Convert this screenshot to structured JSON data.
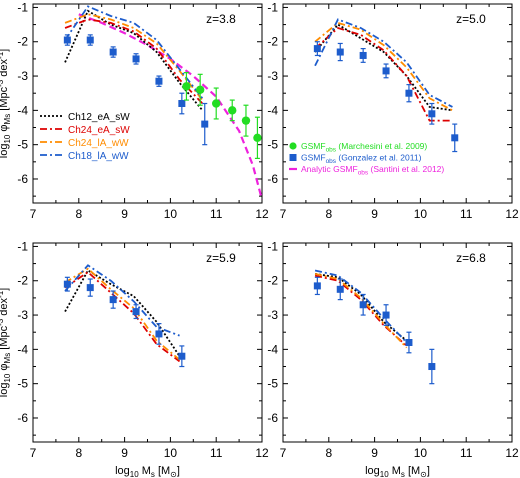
{
  "chart_data": [
    {
      "type": "line",
      "title": "z=3.8",
      "xlabel": "",
      "ylabel": "log10 φMs [Mpc-3 dex-1]",
      "xlim": [
        7,
        12
      ],
      "ylim": [
        -6.7,
        -0.9
      ],
      "xticks": [
        7,
        8,
        9,
        10,
        11,
        12
      ],
      "yticks": [
        -6,
        -5,
        -4,
        -3,
        -2,
        -1
      ],
      "model_series": [
        {
          "name": "Ch12_eA_sW",
          "color": "#000000",
          "dash": "2,2",
          "x": [
            7.7,
            8.2,
            8.7,
            9.2,
            9.7,
            10.2,
            10.7
          ],
          "y": [
            -2.6,
            -1.1,
            -1.5,
            -1.75,
            -2.3,
            -3.2,
            -4.0
          ]
        },
        {
          "name": "Ch24_eA_sW",
          "color": "#dd0000",
          "dash": "7,3,2,3",
          "x": [
            7.7,
            8.2,
            8.7,
            9.2,
            9.7,
            10.2,
            10.7
          ],
          "y": [
            -1.6,
            -1.35,
            -1.45,
            -1.7,
            -2.2,
            -3.1,
            -3.8
          ]
        },
        {
          "name": "Ch24_lA_wW",
          "color": "#ff8c00",
          "dash": "7,3,2,3",
          "x": [
            7.7,
            8.2,
            8.7,
            9.2,
            9.7,
            10.2,
            10.7
          ],
          "y": [
            -1.45,
            -1.2,
            -1.35,
            -1.6,
            -2.05,
            -2.85,
            -3.7
          ]
        },
        {
          "name": "Ch18_lA_wW",
          "color": "#1d5ccc",
          "dash": "7,3,2,3",
          "x": [
            7.7,
            8.2,
            8.7,
            9.2,
            9.7,
            10.2,
            10.7
          ],
          "y": [
            -1.95,
            -0.97,
            -1.25,
            -1.45,
            -1.95,
            -2.8,
            -3.65
          ]
        }
      ],
      "curve": {
        "name": "Analytic GSMFobs (Santini et al. 2012)",
        "color": "#ee22dd",
        "x": [
          8.0,
          8.5,
          9.0,
          9.5,
          10.0,
          10.5,
          11.0,
          11.5,
          11.8,
          12.0
        ],
        "y": [
          -1.2,
          -1.45,
          -1.75,
          -2.1,
          -2.5,
          -3.0,
          -3.6,
          -4.6,
          -5.6,
          -6.6
        ]
      },
      "points": [
        {
          "name": "GSMFobs (Gonzalez et al. 2011)",
          "color": "#1d5ccc",
          "marker": "square",
          "x": [
            7.75,
            8.25,
            8.75,
            9.25,
            9.75,
            10.25,
            10.75
          ],
          "y": [
            -1.95,
            -1.95,
            -2.3,
            -2.5,
            -3.15,
            -3.8,
            -4.4
          ],
          "err": [
            0.15,
            0.15,
            0.15,
            0.15,
            0.15,
            0.3,
            0.6
          ]
        },
        {
          "name": "GSMFobs (Marchesini et al. 2009)",
          "color": "#22dd22",
          "marker": "circle",
          "x": [
            10.35,
            10.65,
            11.0,
            11.35,
            11.65,
            11.9
          ],
          "y": [
            -3.3,
            -3.4,
            -3.8,
            -4.0,
            -4.3,
            -4.8
          ],
          "err": [
            0.4,
            0.45,
            0.45,
            0.3,
            0.45,
            0.6
          ]
        }
      ],
      "legend": {
        "placement": "lower-left",
        "entries": [
          {
            "label": "Ch12_eA_sW",
            "color": "#000000"
          },
          {
            "label": "Ch24_eA_sW",
            "color": "#dd0000"
          },
          {
            "label": "Ch24_lA_wW",
            "color": "#ff8c00"
          },
          {
            "label": "Ch18_lA_wW",
            "color": "#1d5ccc"
          }
        ]
      }
    },
    {
      "type": "line",
      "title": "z=5.0",
      "xlabel": "",
      "ylabel": "",
      "xlim": [
        7,
        12
      ],
      "ylim": [
        -6.7,
        -0.9
      ],
      "xticks": [
        7,
        8,
        9,
        10,
        11,
        12
      ],
      "yticks": [
        -6,
        -5,
        -4,
        -3,
        -2,
        -1
      ],
      "model_series": [
        {
          "name": "Ch12_eA_sW",
          "color": "#000000",
          "dash": "2,2",
          "x": [
            7.7,
            8.2,
            8.7,
            9.2,
            9.7,
            10.2,
            10.7
          ],
          "y": [
            -2.3,
            -1.5,
            -1.9,
            -2.3,
            -3.0,
            -3.9,
            -4.0
          ]
        },
        {
          "name": "Ch24_eA_sW",
          "color": "#dd0000",
          "dash": "7,3,2,3",
          "x": [
            7.7,
            8.2,
            8.7,
            9.2,
            9.7,
            10.2,
            10.7
          ],
          "y": [
            -2.2,
            -1.6,
            -1.8,
            -2.25,
            -3.0,
            -4.3,
            -4.3
          ]
        },
        {
          "name": "Ch24_lA_wW",
          "color": "#ff8c00",
          "dash": "7,3,2,3",
          "x": [
            7.7,
            8.2,
            8.7,
            9.2,
            9.7,
            10.2,
            10.7
          ],
          "y": [
            -2.0,
            -1.45,
            -1.65,
            -2.1,
            -2.75,
            -3.65,
            -4.0
          ]
        },
        {
          "name": "Ch18_lA_wW",
          "color": "#1d5ccc",
          "dash": "7,3,2,3",
          "x": [
            7.7,
            8.2,
            8.7,
            9.2,
            9.7,
            10.2,
            10.7
          ],
          "y": [
            -2.7,
            -1.35,
            -1.6,
            -2.0,
            -2.6,
            -3.55,
            -3.9
          ]
        }
      ],
      "points": [
        {
          "name": "GSMFobs (Gonzalez et al. 2011)",
          "color": "#1d5ccc",
          "marker": "square",
          "x": [
            7.75,
            8.25,
            8.75,
            9.25,
            9.75,
            10.25,
            10.75
          ],
          "y": [
            -2.2,
            -2.3,
            -2.4,
            -2.85,
            -3.5,
            -4.1,
            -4.8
          ],
          "err": [
            0.2,
            0.25,
            0.2,
            0.2,
            0.25,
            0.3,
            0.4
          ]
        }
      ],
      "legend": {
        "placement": "lower-left",
        "entries": [
          {
            "label": "GSMF",
            "sub": "obs",
            "rest": " (Marchesini et al. 2009)",
            "color": "#22dd22",
            "marker": "circle"
          },
          {
            "label": "GSMF",
            "sub": "obs",
            "rest": " (Gonzalez et al. 2011)",
            "color": "#1d5ccc",
            "marker": "square"
          },
          {
            "label": "Analytic GSMF",
            "sub": "obs",
            "rest": " (Santini et al. 2012)",
            "color": "#ee22dd",
            "marker": "dash"
          }
        ]
      }
    },
    {
      "type": "line",
      "title": "z=5.9",
      "xlabel": "log10 Ms [M⊙]",
      "ylabel": "log10 φMs [Mpc-3 dex-1]",
      "xlim": [
        7,
        12
      ],
      "ylim": [
        -6.7,
        -0.9
      ],
      "xticks": [
        7,
        8,
        9,
        10,
        11,
        12
      ],
      "yticks": [
        -6,
        -5,
        -4,
        -3,
        -2,
        -1
      ],
      "model_series": [
        {
          "name": "Ch12_eA_sW",
          "color": "#000000",
          "dash": "2,2",
          "x": [
            7.7,
            8.2,
            8.7,
            9.2,
            9.7,
            10.2
          ],
          "y": [
            -2.9,
            -1.7,
            -2.1,
            -2.45,
            -3.2,
            -4.2
          ]
        },
        {
          "name": "Ch24_eA_sW",
          "color": "#dd0000",
          "dash": "7,3,2,3",
          "x": [
            7.7,
            8.2,
            8.7,
            9.2,
            9.7,
            10.2
          ],
          "y": [
            -2.2,
            -1.75,
            -2.35,
            -2.95,
            -3.85,
            -4.35
          ]
        },
        {
          "name": "Ch24_lA_wW",
          "color": "#ff8c00",
          "dash": "7,3,2,3",
          "x": [
            7.7,
            8.2,
            8.7,
            9.2,
            9.7,
            10.2
          ],
          "y": [
            -2.05,
            -1.65,
            -2.25,
            -2.8,
            -3.75,
            -4.3
          ]
        },
        {
          "name": "Ch18_lA_wW",
          "color": "#1d5ccc",
          "dash": "7,3,2,3",
          "x": [
            7.7,
            8.2,
            8.7,
            9.2,
            9.7,
            10.2
          ],
          "y": [
            -2.3,
            -1.55,
            -2.0,
            -2.6,
            -3.35,
            -3.6
          ]
        }
      ],
      "points": [
        {
          "name": "GSMFobs (Gonzalez et al. 2011)",
          "color": "#1d5ccc",
          "marker": "square",
          "x": [
            7.75,
            8.25,
            8.75,
            9.25,
            9.75,
            10.25
          ],
          "y": [
            -2.1,
            -2.2,
            -2.55,
            -2.9,
            -3.55,
            -4.2
          ],
          "err": [
            0.2,
            0.25,
            0.25,
            0.2,
            0.3,
            0.3
          ]
        }
      ]
    },
    {
      "type": "line",
      "title": "z=6.8",
      "xlabel": "log10 Ms [M⊙]",
      "ylabel": "",
      "xlim": [
        7,
        12
      ],
      "ylim": [
        -6.7,
        -0.9
      ],
      "xticks": [
        7,
        8,
        9,
        10,
        11,
        12
      ],
      "yticks": [
        -6,
        -5,
        -4,
        -3,
        -2,
        -1
      ],
      "model_series": [
        {
          "name": "Ch12_eA_sW",
          "color": "#000000",
          "dash": "2,2",
          "x": [
            7.7,
            8.2,
            8.7,
            9.2,
            9.7
          ],
          "y": [
            -1.8,
            -1.9,
            -2.4,
            -3.2,
            -3.75
          ]
        },
        {
          "name": "Ch24_eA_sW",
          "color": "#dd0000",
          "dash": "7,3,2,3",
          "x": [
            7.7,
            8.2,
            8.7,
            9.2,
            9.7
          ],
          "y": [
            -1.85,
            -2.0,
            -2.55,
            -3.3,
            -3.9
          ]
        },
        {
          "name": "Ch24_lA_wW",
          "color": "#ff8c00",
          "dash": "7,3,2,3",
          "x": [
            7.7,
            8.2,
            8.7,
            9.2,
            9.7
          ],
          "y": [
            -1.8,
            -1.95,
            -2.5,
            -3.25,
            -3.95
          ]
        },
        {
          "name": "Ch18_lA_wW",
          "color": "#1d5ccc",
          "dash": "7,3,2,3",
          "x": [
            7.7,
            8.2,
            8.7,
            9.2,
            9.7
          ],
          "y": [
            -1.7,
            -1.85,
            -2.35,
            -3.1,
            -3.8
          ]
        }
      ],
      "points": [
        {
          "name": "GSMFobs (Gonzalez et al. 2011)",
          "color": "#1d5ccc",
          "marker": "square",
          "x": [
            7.75,
            8.25,
            8.75,
            9.25,
            9.75,
            10.25
          ],
          "y": [
            -2.15,
            -2.25,
            -2.7,
            -3.0,
            -3.8,
            -4.5
          ],
          "err": [
            0.25,
            0.3,
            0.3,
            0.3,
            0.3,
            0.5
          ]
        }
      ]
    }
  ]
}
